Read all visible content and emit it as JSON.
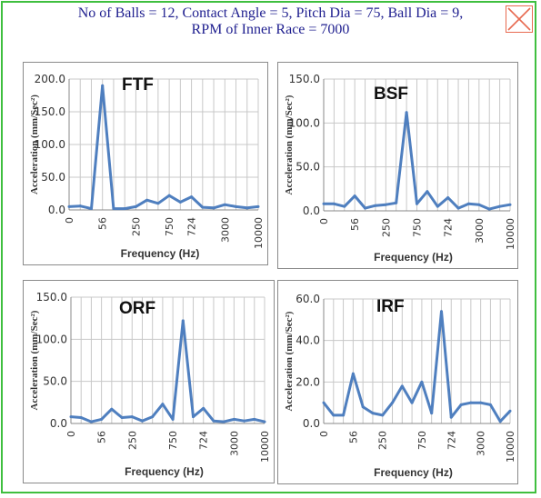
{
  "window": {
    "title_line1": "No of Balls = 12, Contact Angle = 5, Pitch Dia = 75, Ball Dia = 9,",
    "title_line2": "RPM of Inner Race = 7000",
    "close_icon": "close-icon"
  },
  "colors": {
    "line": "#4f7fbf",
    "grid": "#c8c8c8",
    "frame": "#3fbf3f",
    "title": "#1f1f8f",
    "close": "#e86a50"
  },
  "chart_data": [
    {
      "type": "line",
      "title": "FTF",
      "xlabel": "Frequency (Hz)",
      "ylabel": "Acceleration (mm/Sec²)",
      "ylim": [
        0,
        200
      ],
      "yticks": [
        "0.0",
        "50.0",
        "100.0",
        "150.0",
        "200.0"
      ],
      "xticklabels": [
        "0",
        "56",
        "250",
        "750",
        "724",
        "3000",
        "10000"
      ],
      "grid": true,
      "values": [
        5,
        6,
        2,
        190,
        2,
        2,
        5,
        15,
        10,
        22,
        12,
        20,
        4,
        3,
        8,
        5,
        3,
        5
      ]
    },
    {
      "type": "line",
      "title": "BSF",
      "xlabel": "Frequency (Hz)",
      "ylabel": "Acceleration (mm/Sec²)",
      "ylim": [
        0,
        150
      ],
      "yticks": [
        "0.0",
        "50.0",
        "100.0",
        "150.0"
      ],
      "xticklabels": [
        "0",
        "56",
        "250",
        "750",
        "724",
        "3000",
        "10000"
      ],
      "grid": true,
      "values": [
        8,
        8,
        5,
        17,
        3,
        6,
        7,
        9,
        112,
        8,
        22,
        5,
        15,
        3,
        8,
        7,
        2,
        5,
        7
      ]
    },
    {
      "type": "line",
      "title": "ORF",
      "xlabel": "Frequency (Hz)",
      "ylabel": "Acceleration (mm/Sec²)",
      "ylim": [
        0,
        150
      ],
      "yticks": [
        "0.0",
        "50.0",
        "100.0",
        "150.0"
      ],
      "xticklabels": [
        "0",
        "56",
        "250",
        "750",
        "724",
        "3000",
        "10000"
      ],
      "grid": true,
      "values": [
        8,
        7,
        2,
        5,
        17,
        7,
        8,
        3,
        8,
        23,
        5,
        122,
        8,
        18,
        3,
        2,
        5,
        3,
        5,
        2
      ]
    },
    {
      "type": "line",
      "title": "IRF",
      "xlabel": "Frequency (Hz)",
      "ylabel": "Acceleration (mm/Sec²)",
      "ylim": [
        0,
        60
      ],
      "yticks": [
        "0.0",
        "20.0",
        "40.0",
        "60.0"
      ],
      "xticklabels": [
        "0",
        "56",
        "250",
        "750",
        "724",
        "3000",
        "10000"
      ],
      "grid": true,
      "values": [
        10,
        4,
        4,
        24,
        8,
        5,
        4,
        10,
        18,
        10,
        20,
        5,
        54,
        3,
        9,
        10,
        10,
        9,
        1,
        6
      ]
    }
  ]
}
